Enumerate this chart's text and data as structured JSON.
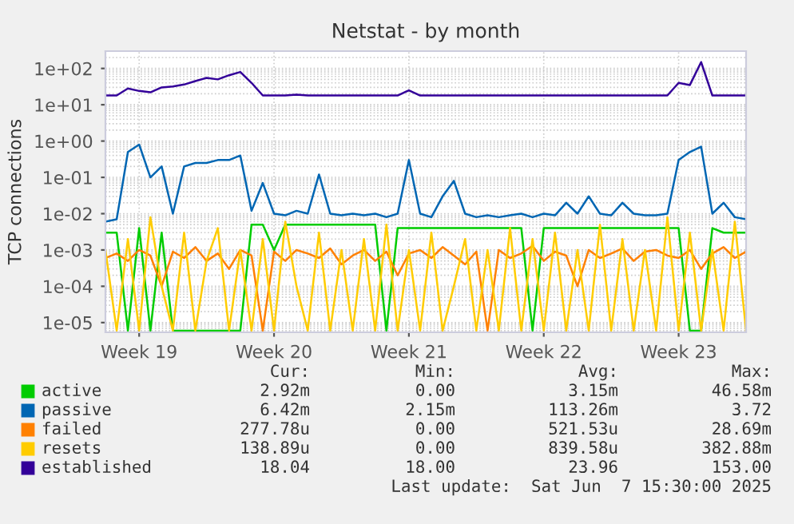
{
  "chart_data": {
    "type": "line",
    "title": "Netstat - by month",
    "ylabel": "TCP connections",
    "log": "y",
    "grid": true,
    "legend": "bottom",
    "categories": [
      null,
      null,
      null,
      "Week 19",
      null,
      null,
      null,
      null,
      null,
      null,
      null,
      null,
      null,
      null,
      null,
      "Week 20",
      null,
      null,
      null,
      null,
      null,
      null,
      null,
      null,
      null,
      null,
      null,
      "Week 21",
      null,
      null,
      null,
      null,
      null,
      null,
      null,
      null,
      null,
      null,
      null,
      "Week 22",
      null,
      null,
      null,
      null,
      null,
      null,
      null,
      null,
      null,
      null,
      null,
      "Week 23",
      null,
      null,
      null,
      null,
      null,
      null
    ],
    "ylim": [
      5.4e-06,
      300
    ],
    "yticks": [
      {
        "value": 100,
        "label": "1e+02"
      },
      {
        "value": 10,
        "label": "1e+01"
      },
      {
        "value": 1,
        "label": "1e+00"
      },
      {
        "value": 0.1,
        "label": "1e-01"
      },
      {
        "value": 0.01,
        "label": "1e-02"
      },
      {
        "value": 0.001,
        "label": "1e-03"
      },
      {
        "value": 0.0001,
        "label": "1e-04"
      },
      {
        "value": 1e-05,
        "label": "1e-05"
      }
    ],
    "series": [
      {
        "name": "active",
        "color": "#00cc00",
        "values": [
          0.003,
          0.003,
          6e-06,
          0.004,
          6e-06,
          0.003,
          6e-06,
          6e-06,
          6e-06,
          6e-06,
          6e-06,
          6e-06,
          6e-06,
          0.005,
          0.005,
          0.001,
          0.005,
          0.005,
          0.005,
          0.005,
          0.005,
          0.005,
          0.005,
          0.005,
          0.005,
          6e-06,
          0.004,
          0.004,
          0.004,
          0.004,
          0.004,
          0.004,
          0.004,
          0.004,
          0.004,
          0.004,
          0.004,
          0.004,
          6e-06,
          0.004,
          0.004,
          0.004,
          0.004,
          0.004,
          0.004,
          0.004,
          0.004,
          0.004,
          0.004,
          0.004,
          0.004,
          0.004,
          6e-06,
          6e-06,
          0.004,
          0.003,
          0.003,
          0.003
        ]
      },
      {
        "name": "passive",
        "color": "#0066b3",
        "values": [
          0.006,
          0.007,
          0.5,
          0.8,
          0.1,
          0.2,
          0.01,
          0.2,
          0.25,
          0.25,
          0.3,
          0.3,
          0.4,
          0.012,
          0.07,
          0.01,
          0.009,
          0.012,
          0.01,
          0.12,
          0.01,
          0.009,
          0.01,
          0.009,
          0.01,
          0.008,
          0.01,
          0.3,
          0.01,
          0.008,
          0.03,
          0.08,
          0.01,
          0.008,
          0.009,
          0.008,
          0.009,
          0.01,
          0.008,
          0.01,
          0.009,
          0.02,
          0.01,
          0.03,
          0.01,
          0.009,
          0.02,
          0.01,
          0.009,
          0.009,
          0.01,
          0.3,
          0.5,
          0.7,
          0.01,
          0.02,
          0.008,
          0.007
        ]
      },
      {
        "name": "failed",
        "color": "#ff8000",
        "values": [
          0.0006,
          0.0008,
          0.0005,
          0.001,
          0.0007,
          0.0001,
          0.0009,
          0.0006,
          0.0012,
          0.0005,
          0.0008,
          0.0003,
          0.001,
          0.0007,
          6e-06,
          0.0009,
          0.0005,
          0.001,
          0.0008,
          0.0006,
          0.0011,
          0.0004,
          0.0007,
          0.001,
          0.0005,
          0.0009,
          0.0002,
          0.0008,
          0.001,
          0.0006,
          0.0012,
          0.0007,
          0.0004,
          0.0009,
          6e-06,
          0.001,
          0.0006,
          0.0008,
          0.0013,
          0.0005,
          0.0009,
          0.0007,
          0.0001,
          0.001,
          0.0006,
          0.0008,
          0.0011,
          0.0005,
          0.0009,
          0.001,
          0.0007,
          0.0006,
          0.001,
          0.0003,
          0.0008,
          0.0012,
          0.0006,
          0.0009
        ]
      },
      {
        "name": "resets",
        "color": "#ffcc00",
        "values": [
          0.001,
          6e-06,
          0.002,
          6e-06,
          0.008,
          0.0001,
          6e-06,
          0.003,
          6e-06,
          0.0005,
          0.004,
          6e-06,
          0.001,
          6e-06,
          0.002,
          6e-06,
          0.006,
          0.0001,
          6e-06,
          0.003,
          6e-06,
          0.001,
          6e-06,
          0.002,
          6e-06,
          0.005,
          6e-06,
          0.001,
          6e-06,
          0.003,
          6e-06,
          0.0001,
          0.002,
          6e-06,
          0.001,
          6e-06,
          0.004,
          6e-06,
          0.002,
          6e-06,
          0.003,
          6e-06,
          0.001,
          6e-06,
          0.005,
          6e-06,
          0.002,
          6e-06,
          0.001,
          6e-06,
          0.008,
          6e-06,
          0.003,
          6e-06,
          0.001,
          6e-06,
          0.006,
          6e-06
        ]
      },
      {
        "name": "established",
        "color": "#330099",
        "values": [
          18,
          18,
          28,
          24,
          22,
          30,
          32,
          36,
          45,
          55,
          50,
          65,
          80,
          40,
          18,
          18,
          18,
          19,
          18,
          18,
          18,
          18,
          18,
          18,
          18,
          18,
          18,
          25,
          18,
          18,
          18,
          18,
          18,
          18,
          18,
          18,
          18,
          18,
          18,
          18,
          18,
          18,
          18,
          18,
          18,
          18,
          18,
          18,
          18,
          18,
          18,
          40,
          35,
          150,
          18,
          18,
          18,
          18
        ]
      }
    ],
    "annotations": [
      "Cur:",
      "Min:",
      "Avg:",
      "Max:",
      "2.92m",
      "0.00",
      "3.15m",
      "46.58m",
      "6.42m",
      "2.15m",
      "113.26m",
      "3.72",
      "277.78u",
      "0.00",
      "521.53u",
      "28.69m",
      "138.89u",
      "0.00",
      "839.58u",
      "382.88m",
      "18.04",
      "18.00",
      "23.96",
      "153.00",
      "Last update:  Sat Jun  7 15:30:00 2025"
    ]
  }
}
